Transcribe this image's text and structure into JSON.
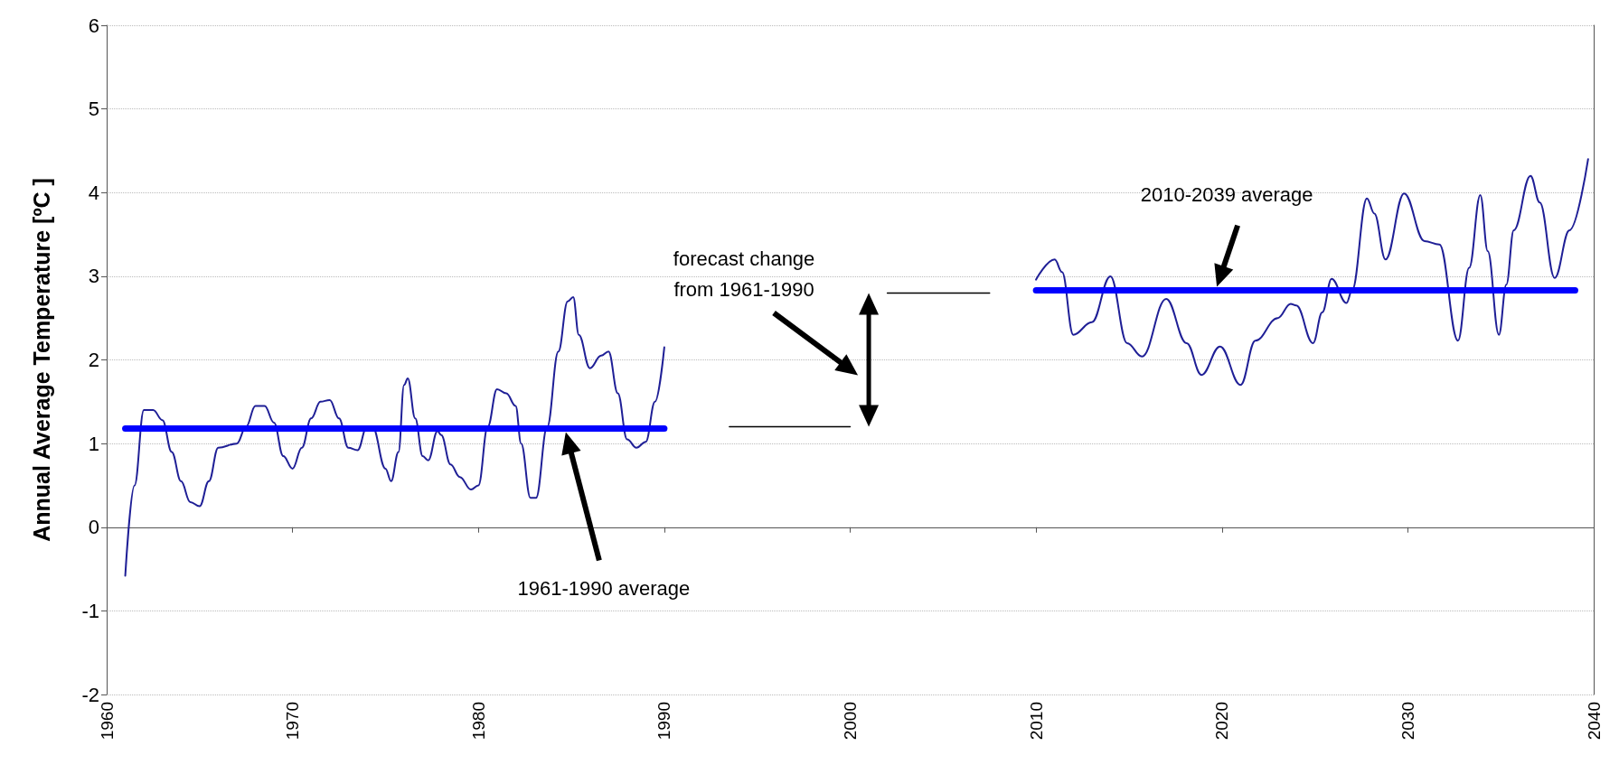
{
  "chart_data": {
    "type": "line",
    "ylabel": "Annual Average Temperature [ºC ]",
    "xlim": [
      1960,
      2040
    ],
    "xticks": [
      1960,
      1970,
      1980,
      1990,
      2000,
      2010,
      2020,
      2030,
      2040
    ],
    "ylim": [
      -2,
      6
    ],
    "yticks": [
      -2,
      -1,
      0,
      1,
      2,
      3,
      4,
      5,
      6
    ],
    "grid": "y",
    "series": [
      {
        "color": "#1f1f96",
        "x": [
          1961,
          1961.5,
          1962,
          1962.5,
          1963,
          1963.5,
          1964,
          1964.5,
          1965,
          1965.5,
          1966,
          1967,
          1967.5,
          1968,
          1968.5,
          1969,
          1969.5,
          1970,
          1970.5,
          1971,
          1971.5,
          1972,
          1972.5,
          1973,
          1973.5,
          1974,
          1974.3,
          1975,
          1975.3,
          1975.7,
          1976,
          1976.2,
          1976.6,
          1977,
          1977.3,
          1977.8,
          1978,
          1978.5,
          1979,
          1979.6,
          1980,
          1980.5,
          1981,
          1981.5,
          1982,
          1982.3,
          1982.8,
          1983.1,
          1983.7,
          1984.3,
          1984.8,
          1985.1,
          1985.4,
          1986,
          1986.6,
          1987,
          1987.5,
          1988,
          1988.5,
          1989,
          1989.5,
          1990,
          null,
          2010,
          2011,
          2011.4,
          2012,
          2013,
          2014,
          2014.9,
          2015.7,
          2017,
          2018.1,
          2018.9,
          2019.9,
          2021,
          2021.8,
          2023,
          2023.7,
          2024,
          2024.9,
          2025.4,
          2025.9,
          2026.7,
          2027,
          2027.8,
          2028.2,
          2028.8,
          2029.8,
          2030.9,
          2031.7,
          2032.7,
          2033.3,
          2033.9,
          2034.3,
          2034.9,
          2035.3,
          2035.7,
          2036.6,
          2037.1,
          2037.9,
          2038.7,
          2039.7
        ],
        "values": [
          -0.58,
          0.5,
          1.4,
          1.4,
          1.28,
          0.9,
          0.55,
          0.3,
          0.25,
          0.55,
          0.95,
          1.0,
          1.2,
          1.45,
          1.45,
          1.25,
          0.85,
          0.7,
          0.95,
          1.3,
          1.5,
          1.52,
          1.3,
          0.95,
          0.92,
          1.2,
          1.2,
          0.7,
          0.55,
          0.9,
          1.7,
          1.78,
          1.3,
          0.85,
          0.8,
          1.15,
          1.1,
          0.75,
          0.6,
          0.45,
          0.5,
          1.2,
          1.65,
          1.6,
          1.45,
          1.0,
          0.35,
          0.35,
          1.2,
          2.1,
          2.7,
          2.75,
          2.3,
          1.9,
          2.05,
          2.1,
          1.6,
          1.05,
          0.95,
          1.02,
          1.5,
          2.15,
          null,
          2.96,
          3.2,
          3.05,
          2.3,
          2.45,
          3.0,
          2.2,
          2.04,
          2.73,
          2.2,
          1.82,
          2.16,
          1.7,
          2.23,
          2.5,
          2.67,
          2.65,
          2.2,
          2.57,
          2.97,
          2.68,
          2.83,
          3.93,
          3.75,
          3.2,
          3.99,
          3.42,
          3.38,
          2.23,
          3.1,
          3.97,
          3.3,
          2.3,
          2.9,
          3.55,
          4.2,
          3.88,
          2.98,
          3.55,
          4.4
        ]
      },
      {
        "color": "#0000ff",
        "x": [
          1961,
          1990
        ],
        "values": [
          1.18,
          1.18
        ]
      },
      {
        "color": "#0000ff",
        "x": [
          2010,
          2039
        ],
        "values": [
          2.83,
          2.83
        ]
      },
      {
        "color": "#000000",
        "x": [
          1993.5,
          2000
        ],
        "values": [
          1.2,
          1.2
        ]
      },
      {
        "color": "#000000",
        "x": [
          2002,
          2007.5
        ],
        "values": [
          2.8,
          2.8
        ]
      }
    ],
    "annotations": [
      "1961-1990 average",
      "2010-2039 average",
      "forecast change\nfrom 1961-1990"
    ]
  }
}
